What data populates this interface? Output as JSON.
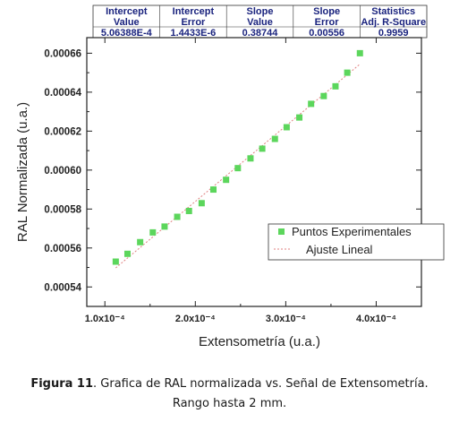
{
  "stats_table": {
    "headers": [
      [
        "Intercept",
        "Value"
      ],
      [
        "Intercept",
        "Error"
      ],
      [
        "Slope",
        "Value"
      ],
      [
        "Slope",
        "Error"
      ],
      [
        "Statistics",
        "Adj. R-Square"
      ]
    ],
    "values": [
      "5.06388E-4",
      "1.4433E-6",
      "0.38744",
      "0.00556",
      "0.9959"
    ],
    "header_color": "#1a237e"
  },
  "chart_data": {
    "type": "scatter",
    "xlabel": "Extensometría (u.a.)",
    "ylabel": "RAL Normalizada (u.a.)",
    "xlim": [
      8e-05,
      0.00045
    ],
    "ylim": [
      0.00053,
      0.000668
    ],
    "x_ticks": [
      0.0001,
      0.0002,
      0.0003,
      0.0004
    ],
    "x_tick_labels": [
      "1.0x10⁻⁴",
      "2.0x10⁻⁴",
      "3.0x10⁻⁴",
      "4.0x10⁻⁴"
    ],
    "y_ticks": [
      0.00054,
      0.00056,
      0.00058,
      0.0006,
      0.00062,
      0.00064,
      0.00066
    ],
    "y_tick_labels": [
      "0.00054",
      "0.00056",
      "0.00058",
      "0.00060",
      "0.00062",
      "0.00064",
      "0.00066"
    ],
    "series": [
      {
        "name": "Puntos Experimentales",
        "color": "#5cd65c",
        "x": [
          0.000112,
          0.000125,
          0.000139,
          0.000153,
          0.000166,
          0.00018,
          0.000193,
          0.000207,
          0.00022,
          0.000234,
          0.000247,
          0.000261,
          0.000274,
          0.000288,
          0.000301,
          0.000315,
          0.000328,
          0.000342,
          0.000355,
          0.000368,
          0.000382
        ],
        "y": [
          0.000553,
          0.000557,
          0.000563,
          0.000568,
          0.000571,
          0.000576,
          0.000579,
          0.000583,
          0.00059,
          0.000595,
          0.000601,
          0.000606,
          0.000611,
          0.000616,
          0.000622,
          0.000627,
          0.000634,
          0.000638,
          0.000643,
          0.00065,
          0.00066
        ]
      },
      {
        "name": "Ajuste Lineal",
        "type": "line",
        "color": "#e08080",
        "intercept": 0.000506388,
        "slope": 0.38744,
        "x_range": [
          0.000112,
          0.000382
        ]
      }
    ],
    "legend_position": "bottom-right"
  },
  "caption": {
    "label": "Figura 11",
    "text": ". Grafica de RAL normalizada vs. Señal de Extensometría.",
    "line2": "Rango hasta 2 mm."
  }
}
